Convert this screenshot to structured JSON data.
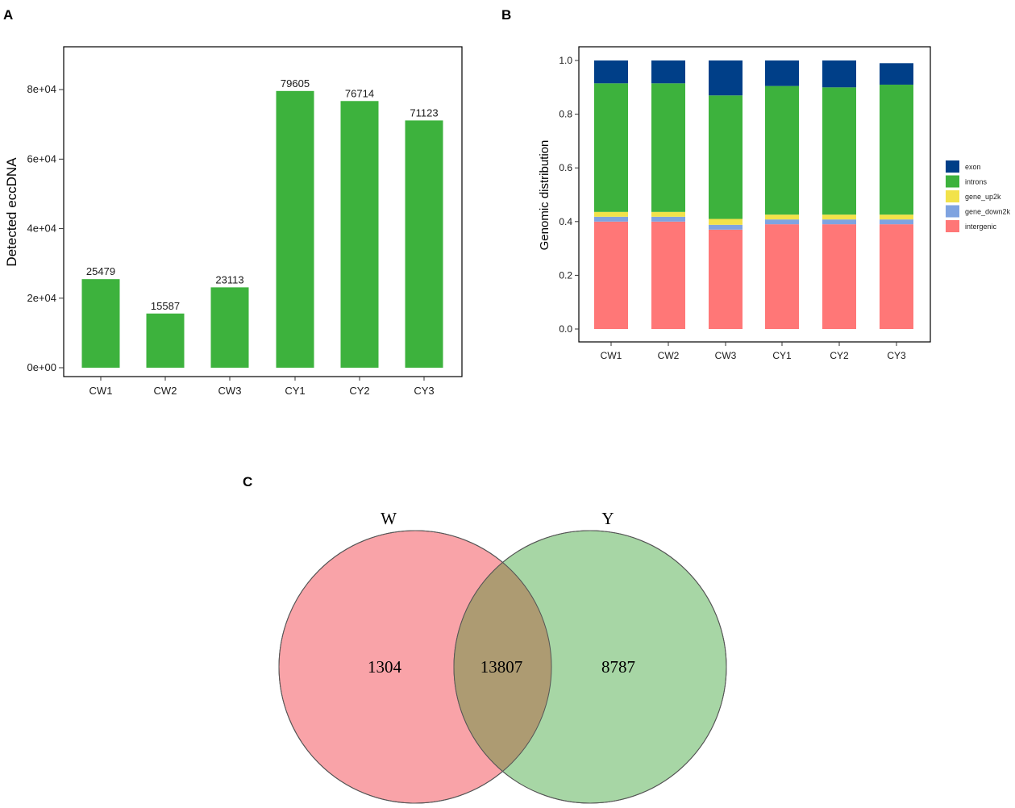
{
  "panels": {
    "a": "A",
    "b": "B",
    "c": "C"
  },
  "chart_data": [
    {
      "type": "bar",
      "title": "",
      "xlabel": "",
      "ylabel": "Detected eccDNA",
      "categories": [
        "CW1",
        "CW2",
        "CW3",
        "CY1",
        "CY2",
        "CY3"
      ],
      "values": [
        25479,
        15587,
        23113,
        79605,
        76714,
        71123
      ],
      "value_labels": [
        "25479",
        "15587",
        "23113",
        "79605",
        "76714",
        "71123"
      ],
      "ylim": [
        0,
        90000
      ],
      "yticks": [
        0,
        20000,
        40000,
        60000,
        80000
      ],
      "ytick_labels": [
        "0e+00",
        "2e+04",
        "4e+04",
        "6e+04",
        "8e+04"
      ],
      "color": "#3db23d",
      "grid": false
    },
    {
      "type": "bar",
      "stacked": true,
      "title": "",
      "xlabel": "",
      "ylabel": "Genomic distribution",
      "categories": [
        "CW1",
        "CW2",
        "CW3",
        "CY1",
        "CY2",
        "CY3"
      ],
      "ylim": [
        0,
        1.0
      ],
      "yticks": [
        0.0,
        0.2,
        0.4,
        0.6,
        0.8,
        1.0
      ],
      "ytick_labels": [
        "0.0",
        "0.2",
        "0.4",
        "0.6",
        "0.8",
        "1.0"
      ],
      "legend_position": "right",
      "series": [
        {
          "name": "intergenic",
          "color": "#ff7777",
          "values": [
            0.4,
            0.4,
            0.37,
            0.39,
            0.39,
            0.39
          ]
        },
        {
          "name": "gene_down2k",
          "color": "#7fa3e0",
          "values": [
            0.018,
            0.018,
            0.018,
            0.018,
            0.018,
            0.018
          ]
        },
        {
          "name": "gene_up2k",
          "color": "#f2e24a",
          "values": [
            0.018,
            0.018,
            0.022,
            0.018,
            0.018,
            0.018
          ]
        },
        {
          "name": "introns",
          "color": "#3db23d",
          "values": [
            0.479,
            0.479,
            0.46,
            0.479,
            0.474,
            0.484
          ]
        },
        {
          "name": "exon",
          "color": "#003f88",
          "values": [
            0.085,
            0.085,
            0.13,
            0.095,
            0.1,
            0.08
          ]
        }
      ],
      "legend_order": [
        "exon",
        "introns",
        "gene_up2k",
        "gene_down2k",
        "intergenic"
      ],
      "grid": false
    },
    {
      "type": "venn",
      "sets": [
        {
          "name": "W",
          "color": "#f9a3a8",
          "unique": 1304
        },
        {
          "name": "Y",
          "color": "#a7d6a5",
          "unique": 8787
        }
      ],
      "intersection": 13807,
      "intersection_color": "#ad9b72"
    }
  ]
}
